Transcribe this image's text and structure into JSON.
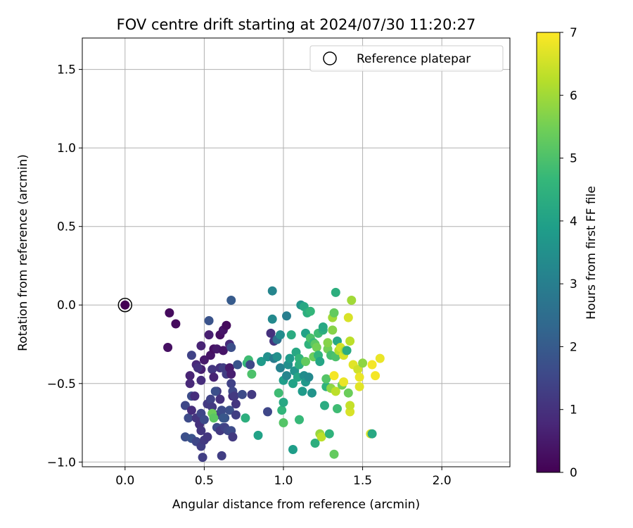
{
  "chart_data": {
    "type": "scatter",
    "title": "FOV centre drift starting at 2024/07/30 11:20:27",
    "xlabel": "Angular distance from reference (arcmin)",
    "ylabel": "Rotation from reference (arcmin)",
    "xlim": [
      -0.27,
      2.43
    ],
    "ylim": [
      -1.03,
      1.7
    ],
    "xticks": [
      0.0,
      0.5,
      1.0,
      1.5,
      2.0
    ],
    "xtick_labels": [
      "0.0",
      "0.5",
      "1.0",
      "1.5",
      "2.0"
    ],
    "yticks": [
      -1.0,
      -0.5,
      0.0,
      0.5,
      1.0,
      1.5
    ],
    "ytick_labels": [
      "−1.0",
      "−0.5",
      "0.0",
      "0.5",
      "1.0",
      "1.5"
    ],
    "grid": true,
    "legend": {
      "position": "top-right",
      "entries": [
        "Reference platepar"
      ]
    },
    "reference_point": {
      "x": 0.0,
      "y": 0.0,
      "hours": 0
    },
    "colorbar": {
      "label": "Hours from first FF file",
      "range": [
        0,
        7
      ],
      "ticks": [
        0,
        1,
        2,
        3,
        4,
        5,
        6,
        7
      ],
      "tick_labels": [
        "0",
        "1",
        "2",
        "3",
        "4",
        "5",
        "6",
        "7"
      ],
      "colormap": "viridis"
    },
    "points": [
      [
        0.28,
        -0.05,
        0.2
      ],
      [
        0.32,
        -0.12,
        0.2
      ],
      [
        0.27,
        -0.27,
        0.3
      ],
      [
        0.42,
        -0.32,
        1.4
      ],
      [
        0.45,
        -0.38,
        0.8
      ],
      [
        0.41,
        -0.45,
        0.7
      ],
      [
        0.48,
        -0.41,
        0.6
      ],
      [
        0.5,
        -0.35,
        0.5
      ],
      [
        0.54,
        -0.32,
        0.4
      ],
      [
        0.56,
        -0.28,
        0.3
      ],
      [
        0.58,
        -0.28,
        0.5
      ],
      [
        0.53,
        -0.19,
        0.6
      ],
      [
        0.53,
        -0.1,
        1.8
      ],
      [
        0.6,
        -0.19,
        0.3
      ],
      [
        0.62,
        -0.16,
        0.4
      ],
      [
        0.64,
        -0.13,
        0.2
      ],
      [
        0.62,
        -0.29,
        0.4
      ],
      [
        0.66,
        -0.25,
        0.9
      ],
      [
        0.67,
        -0.27,
        1.7
      ],
      [
        0.67,
        0.03,
        2.0
      ],
      [
        0.41,
        -0.5,
        0.8
      ],
      [
        0.42,
        -0.58,
        1.6
      ],
      [
        0.44,
        -0.58,
        0.9
      ],
      [
        0.46,
        -0.4,
        1.0
      ],
      [
        0.48,
        -0.48,
        0.9
      ],
      [
        0.48,
        -0.26,
        0.7
      ],
      [
        0.55,
        -0.41,
        1.1
      ],
      [
        0.56,
        -0.46,
        0.7
      ],
      [
        0.58,
        -0.55,
        1.2
      ],
      [
        0.6,
        -0.4,
        1.0
      ],
      [
        0.62,
        -0.4,
        1.3
      ],
      [
        0.64,
        -0.44,
        1.3
      ],
      [
        0.66,
        -0.4,
        0.5
      ],
      [
        0.67,
        -0.5,
        1.4
      ],
      [
        0.67,
        -0.44,
        0.6
      ],
      [
        0.38,
        -0.64,
        1.5
      ],
      [
        0.4,
        -0.72,
        1.6
      ],
      [
        0.42,
        -0.67,
        0.9
      ],
      [
        0.45,
        -0.72,
        1.1
      ],
      [
        0.47,
        -0.76,
        1.0
      ],
      [
        0.48,
        -0.8,
        1.1
      ],
      [
        0.48,
        -0.69,
        1.5
      ],
      [
        0.5,
        -0.73,
        1.6
      ],
      [
        0.52,
        -0.63,
        1.2
      ],
      [
        0.54,
        -0.6,
        1.4
      ],
      [
        0.55,
        -0.65,
        1.2
      ],
      [
        0.57,
        -0.55,
        1.7
      ],
      [
        0.58,
        -0.7,
        1.3
      ],
      [
        0.6,
        -0.6,
        1.0
      ],
      [
        0.61,
        -0.67,
        1.6
      ],
      [
        0.62,
        -0.78,
        1.9
      ],
      [
        0.63,
        -0.72,
        1.8
      ],
      [
        0.66,
        -0.67,
        1.7
      ],
      [
        0.68,
        -0.58,
        0.9
      ],
      [
        0.68,
        -0.55,
        1.5
      ],
      [
        0.69,
        -0.58,
        1.2
      ],
      [
        0.7,
        -0.7,
        1.3
      ],
      [
        0.38,
        -0.84,
        1.7
      ],
      [
        0.42,
        -0.85,
        1.8
      ],
      [
        0.45,
        -0.87,
        1.5
      ],
      [
        0.48,
        -0.9,
        1.3
      ],
      [
        0.49,
        -0.97,
        1.3
      ],
      [
        0.5,
        -0.86,
        1.2
      ],
      [
        0.52,
        -0.84,
        1.1
      ],
      [
        0.55,
        -0.69,
        5.4
      ],
      [
        0.56,
        -0.72,
        5.2
      ],
      [
        0.58,
        -0.78,
        1.6
      ],
      [
        0.6,
        -0.8,
        1.2
      ],
      [
        0.61,
        -0.96,
        1.3
      ],
      [
        0.62,
        -0.72,
        1.9
      ],
      [
        0.63,
        -0.78,
        1.4
      ],
      [
        0.65,
        -0.8,
        1.5
      ],
      [
        0.67,
        -0.8,
        1.6
      ],
      [
        0.68,
        -0.84,
        1.2
      ],
      [
        0.7,
        -0.63,
        1.1
      ],
      [
        0.71,
        -0.38,
        1.8
      ],
      [
        0.74,
        -0.57,
        1.6
      ],
      [
        0.76,
        -0.72,
        4.4
      ],
      [
        0.77,
        -0.37,
        4.6
      ],
      [
        0.78,
        -0.35,
        4.8
      ],
      [
        0.79,
        -0.38,
        1.5
      ],
      [
        0.8,
        -0.57,
        1.2
      ],
      [
        0.8,
        -0.44,
        5.0
      ],
      [
        0.84,
        -0.83,
        4.0
      ],
      [
        0.86,
        -0.36,
        3.8
      ],
      [
        0.9,
        -0.33,
        3.5
      ],
      [
        0.92,
        -0.18,
        1.0
      ],
      [
        0.93,
        0.09,
        3.2
      ],
      [
        0.93,
        -0.09,
        3.3
      ],
      [
        0.94,
        -0.34,
        2.9
      ],
      [
        0.94,
        -0.23,
        1.1
      ],
      [
        0.96,
        -0.22,
        2.6
      ],
      [
        0.96,
        -0.33,
        3.5
      ],
      [
        0.9,
        -0.68,
        1.5
      ],
      [
        0.97,
        -0.56,
        4.8
      ],
      [
        0.98,
        -0.4,
        3.1
      ],
      [
        0.98,
        -0.19,
        3.4
      ],
      [
        0.99,
        -0.67,
        4.6
      ],
      [
        1.0,
        -0.75,
        5.1
      ],
      [
        1.0,
        -0.62,
        4.2
      ],
      [
        1.0,
        -0.48,
        3.9
      ],
      [
        1.02,
        -0.07,
        3.0
      ],
      [
        1.02,
        -0.45,
        3.2
      ],
      [
        1.03,
        -0.38,
        3.5
      ],
      [
        1.04,
        -0.34,
        3.8
      ],
      [
        1.05,
        -0.19,
        4.3
      ],
      [
        1.06,
        -0.5,
        4.0
      ],
      [
        1.06,
        -0.92,
        3.9
      ],
      [
        1.07,
        -0.42,
        3.6
      ],
      [
        1.08,
        -0.3,
        4.2
      ],
      [
        1.09,
        -0.46,
        4.1
      ],
      [
        1.1,
        -0.34,
        4.6
      ],
      [
        1.1,
        -0.38,
        4.4
      ],
      [
        1.1,
        -0.73,
        4.7
      ],
      [
        1.11,
        0.0,
        3.6
      ],
      [
        1.12,
        -0.55,
        3.8
      ],
      [
        1.13,
        -0.45,
        3.4
      ],
      [
        1.13,
        -0.01,
        4.2
      ],
      [
        1.14,
        -0.36,
        5.3
      ],
      [
        1.14,
        -0.18,
        4.0
      ],
      [
        1.14,
        -0.49,
        3.7
      ],
      [
        1.15,
        -0.05,
        4.4
      ],
      [
        1.16,
        -0.25,
        4.5
      ],
      [
        1.16,
        -0.46,
        3.3
      ],
      [
        1.17,
        -0.04,
        4.6
      ],
      [
        1.17,
        -0.21,
        5.0
      ],
      [
        1.18,
        -0.56,
        3.6
      ],
      [
        1.19,
        -0.24,
        4.7
      ],
      [
        1.19,
        -0.33,
        5.4
      ],
      [
        1.2,
        -0.88,
        4.4
      ],
      [
        1.2,
        -0.25,
        5.2
      ],
      [
        1.21,
        -0.27,
        5.5
      ],
      [
        1.22,
        -0.32,
        4.6
      ],
      [
        1.22,
        -0.18,
        4.8
      ],
      [
        1.23,
        -0.36,
        4.1
      ],
      [
        1.23,
        -0.82,
        5.9
      ],
      [
        1.24,
        -0.84,
        6.3
      ],
      [
        1.25,
        -0.16,
        4.4
      ],
      [
        1.25,
        -0.14,
        4.2
      ],
      [
        1.26,
        -0.64,
        4.3
      ],
      [
        1.27,
        -0.52,
        4.5
      ],
      [
        1.27,
        -0.47,
        5.1
      ],
      [
        1.28,
        -0.28,
        5.5
      ],
      [
        1.28,
        -0.24,
        5.7
      ],
      [
        1.29,
        -0.82,
        4.5
      ],
      [
        1.3,
        -0.53,
        5.8
      ],
      [
        1.3,
        -0.32,
        4.9
      ],
      [
        1.31,
        -0.16,
        5.7
      ],
      [
        1.31,
        -0.08,
        6.0
      ],
      [
        1.32,
        -0.05,
        5.3
      ],
      [
        1.32,
        -0.45,
        6.9
      ],
      [
        1.32,
        -0.95,
        5.3
      ],
      [
        1.33,
        0.08,
        4.4
      ],
      [
        1.33,
        -0.33,
        5.0
      ],
      [
        1.33,
        -0.55,
        6.3
      ],
      [
        1.34,
        -0.23,
        4.2
      ],
      [
        1.34,
        -0.66,
        4.8
      ],
      [
        1.35,
        -0.29,
        6.2
      ],
      [
        1.36,
        -0.27,
        6.5
      ],
      [
        1.37,
        -0.51,
        5.5
      ],
      [
        1.38,
        -0.32,
        6.6
      ],
      [
        1.38,
        -0.49,
        6.8
      ],
      [
        1.39,
        -0.29,
        6.1
      ],
      [
        1.4,
        -0.29,
        4.3
      ],
      [
        1.41,
        -0.08,
        6.6
      ],
      [
        1.41,
        -0.56,
        5.4
      ],
      [
        1.42,
        -0.23,
        6.3
      ],
      [
        1.42,
        -0.68,
        6.6
      ],
      [
        1.42,
        -0.64,
        6.4
      ],
      [
        1.43,
        0.03,
        6.0
      ],
      [
        1.44,
        -0.38,
        6.7
      ],
      [
        1.47,
        -0.41,
        6.5
      ],
      [
        1.48,
        -0.46,
        6.8
      ],
      [
        1.48,
        -0.52,
        6.7
      ],
      [
        1.5,
        -0.37,
        5.8
      ],
      [
        1.55,
        -0.82,
        6.6
      ],
      [
        1.56,
        -0.82,
        4.2
      ],
      [
        1.56,
        -0.38,
        6.9
      ],
      [
        1.58,
        -0.45,
        6.9
      ],
      [
        1.61,
        -0.34,
        6.8
      ]
    ]
  }
}
